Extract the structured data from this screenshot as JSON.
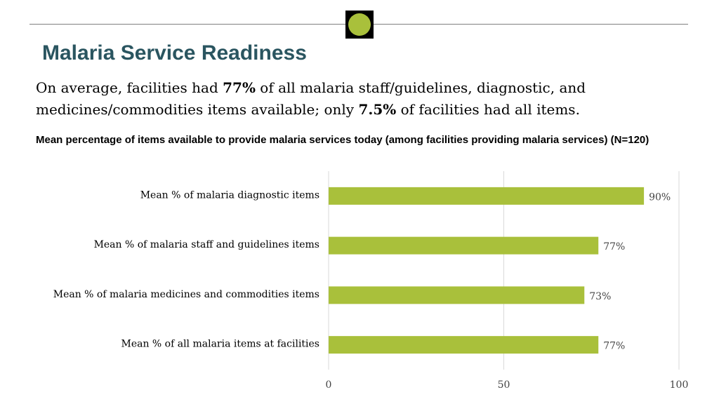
{
  "header": {
    "title": "Malaria Service Readiness",
    "summary_parts": [
      "On average, facilities had ",
      "77%",
      " of all malaria staff/guidelines, diagnostic, and medicines/commodities items available; only ",
      "7.5%",
      " of facilities had all items."
    ]
  },
  "colors": {
    "title": "#2a5560",
    "bar": "#a9c03b",
    "logo_dot": "#a9c03b",
    "gridline": "#d9d9d9"
  },
  "chart_data": {
    "type": "bar",
    "orientation": "horizontal",
    "title": "Mean percentage of items available to provide malaria services today (among facilities providing malaria services) (N=120)",
    "categories": [
      "Mean % of malaria diagnostic items",
      "Mean % of malaria staff and guidelines items",
      "Mean % of malaria medicines and commodities items",
      "Mean % of all malaria items at facilities"
    ],
    "values": [
      90,
      77,
      73,
      77
    ],
    "value_labels": [
      "90%",
      "77%",
      "73%",
      "77%"
    ],
    "xlim": [
      0,
      100
    ],
    "xticks": [
      "0",
      "50",
      "100"
    ],
    "grid": true,
    "legend": "none"
  }
}
